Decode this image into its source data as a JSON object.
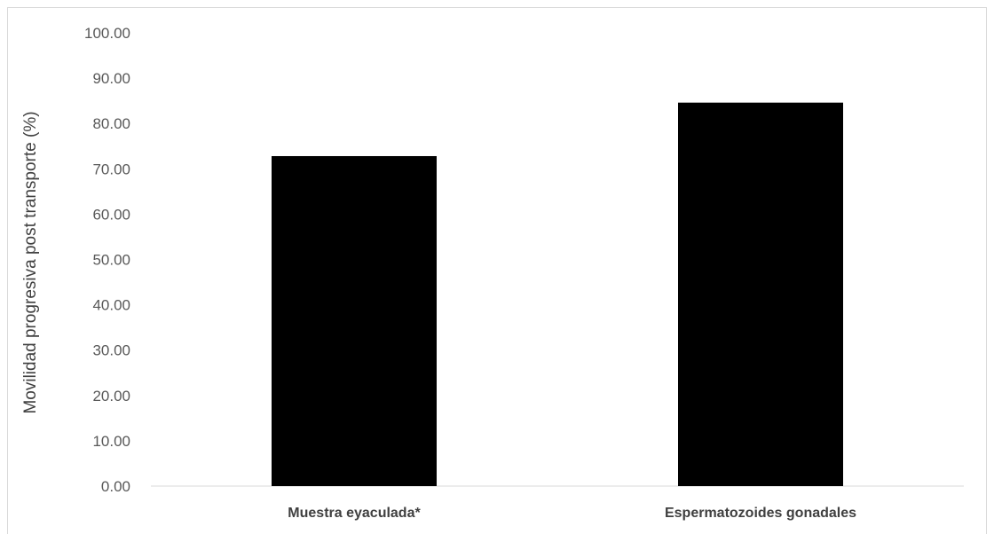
{
  "chart_data": {
    "type": "bar",
    "title": "",
    "xlabel": "",
    "ylabel": "Movilidad progresiva post transporte (%)",
    "categories": [
      "Muestra eyaculada*",
      "Espermatozoides gonadales"
    ],
    "values": [
      72.8,
      84.6
    ],
    "ylim": [
      0,
      100
    ],
    "yticks": [
      "0.00",
      "10.00",
      "20.00",
      "30.00",
      "40.00",
      "50.00",
      "60.00",
      "70.00",
      "80.00",
      "90.00",
      "100.00"
    ],
    "grid": false,
    "legend": "none",
    "bar_color": "#000000"
  }
}
